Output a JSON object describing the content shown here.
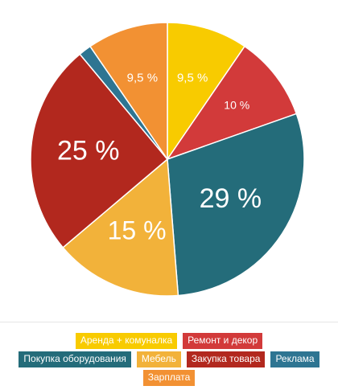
{
  "chart_data": {
    "type": "pie",
    "title": "",
    "legend_position": "bottom",
    "slices": [
      {
        "name": "Аренда + комуналка",
        "value": 9.5,
        "label": "9,5 %",
        "color": "#F8CB00"
      },
      {
        "name": "Ремонт и декор",
        "value": 10,
        "label": "10 %",
        "color": "#D23A3A"
      },
      {
        "name": "Покупка оборудования",
        "value": 29,
        "label": "29 %",
        "color": "#246C7A"
      },
      {
        "name": "Мебель",
        "value": 15,
        "label": "15 %",
        "color": "#F2B23A"
      },
      {
        "name": "Закупка товара",
        "value": 25,
        "label": "25 %",
        "color": "#B2281E"
      },
      {
        "name": "Реклама",
        "value": 1.5,
        "label": "",
        "color": "#2E7592"
      },
      {
        "name": "Зарплата",
        "value": 9.5,
        "label": "9,5 %",
        "color": "#F29133"
      }
    ],
    "legend_rows": [
      [
        0,
        1
      ],
      [
        2,
        3,
        4,
        5
      ],
      [
        6
      ]
    ]
  }
}
